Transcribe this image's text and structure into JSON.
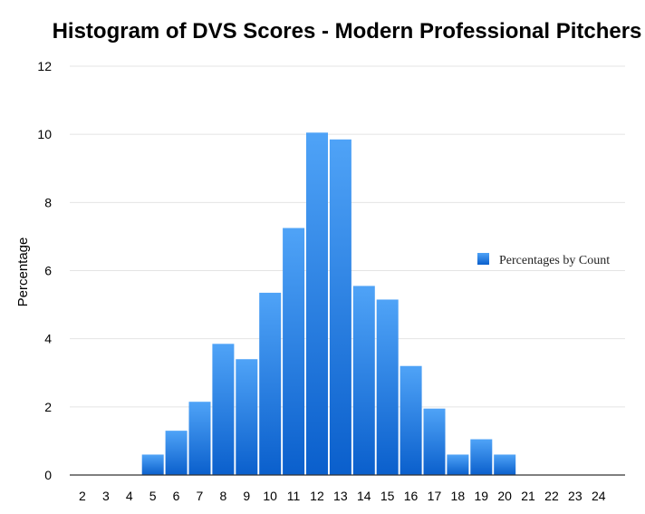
{
  "chart_data": {
    "type": "bar",
    "title": "Histogram of DVS Scores - Modern Professional Pitchers",
    "xlabel": "",
    "ylabel": "Percentage",
    "categories": [
      "2",
      "3",
      "4",
      "5",
      "6",
      "7",
      "8",
      "9",
      "10",
      "11",
      "12",
      "13",
      "14",
      "15",
      "16",
      "17",
      "18",
      "19",
      "20",
      "21",
      "22",
      "23",
      "24"
    ],
    "series": [
      {
        "name": "Percentages by Count",
        "values": [
          0,
          0,
          0,
          0.6,
          1.3,
          2.15,
          3.85,
          3.4,
          5.35,
          7.25,
          10.05,
          9.85,
          5.55,
          5.15,
          3.2,
          1.95,
          0.6,
          1.05,
          0.6,
          0,
          0,
          0,
          0
        ]
      }
    ],
    "ylim": [
      0,
      12
    ],
    "yticks": [
      "0",
      "2",
      "4",
      "6",
      "8",
      "10",
      "12"
    ],
    "grid": true,
    "legend_position": "right",
    "colors": {
      "bar_top": "#4fa3f7",
      "bar_bottom": "#0a5fcc"
    }
  }
}
